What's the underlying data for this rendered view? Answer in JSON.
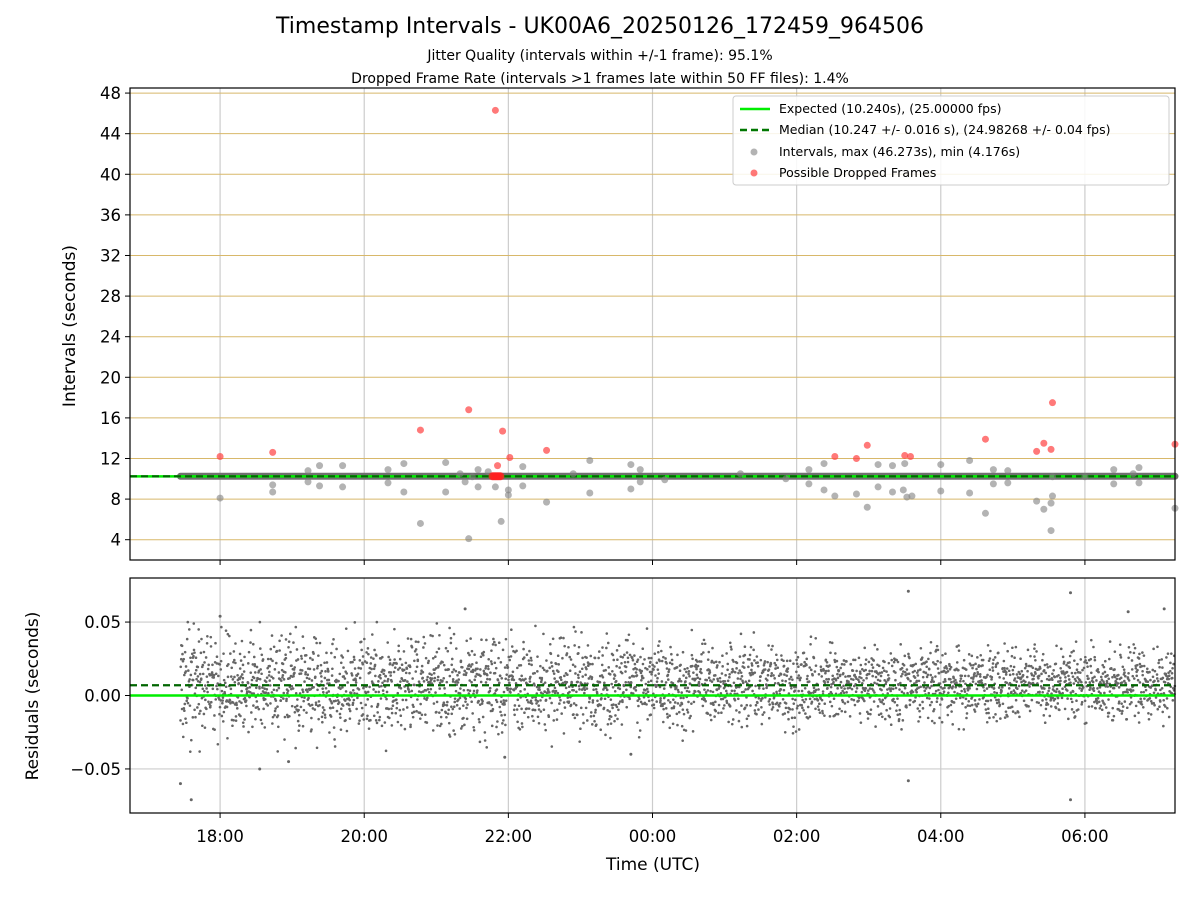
{
  "chart_data": [
    {
      "type": "scatter",
      "title": "Timestamp Intervals - UK00A6_20250126_172459_964506",
      "subtitle_1": "Jitter Quality (intervals within +/-1 frame): 95.1%",
      "subtitle_2": "Dropped Frame Rate (intervals >1 frames late within 50 FF files): 1.4%",
      "ylabel": "Intervals (seconds)",
      "ylim": [
        2,
        48.5
      ],
      "yticks": [
        "4",
        "8",
        "12",
        "16",
        "20",
        "24",
        "28",
        "32",
        "36",
        "40",
        "44",
        "48"
      ],
      "x_range_hours": [
        16.75,
        31.25
      ],
      "grid": true,
      "legend_position": "top-right",
      "legend": [
        "Expected (10.240s), (25.00000 fps)",
        "Median (10.247 +/- 0.016 s), (24.98268 +/- 0.04 fps)",
        "Intervals, max (46.273s), min (4.176s)",
        "Possible Dropped Frames"
      ],
      "expected_interval": 10.24,
      "median_interval": 10.247,
      "series": [
        {
          "kind": "intervals",
          "color": "#808080",
          "points": [
            [
              18.0,
              8.1
            ],
            [
              18.73,
              8.7
            ],
            [
              18.73,
              9.4
            ],
            [
              19.22,
              9.7
            ],
            [
              19.22,
              10.8
            ],
            [
              19.38,
              9.3
            ],
            [
              19.38,
              11.3
            ],
            [
              19.7,
              11.3
            ],
            [
              19.7,
              9.2
            ],
            [
              20.33,
              10.9
            ],
            [
              20.33,
              9.6
            ],
            [
              20.55,
              11.5
            ],
            [
              20.55,
              8.7
            ],
            [
              20.78,
              5.6
            ],
            [
              21.13,
              11.6
            ],
            [
              21.13,
              8.7
            ],
            [
              21.33,
              10.5
            ],
            [
              21.4,
              9.7
            ],
            [
              21.45,
              4.1
            ],
            [
              21.5,
              10.2
            ],
            [
              21.58,
              9.2
            ],
            [
              21.58,
              10.9
            ],
            [
              21.72,
              10.7
            ],
            [
              21.82,
              9.2
            ],
            [
              21.9,
              5.8
            ],
            [
              22.0,
              8.4
            ],
            [
              22.0,
              8.9
            ],
            [
              22.2,
              11.2
            ],
            [
              22.2,
              9.3
            ],
            [
              22.53,
              7.7
            ],
            [
              22.9,
              10.5
            ],
            [
              23.13,
              11.8
            ],
            [
              23.13,
              8.6
            ],
            [
              23.7,
              9.0
            ],
            [
              23.7,
              11.4
            ],
            [
              23.83,
              9.7
            ],
            [
              23.83,
              10.9
            ],
            [
              24.17,
              9.9
            ],
            [
              25.22,
              10.5
            ],
            [
              25.85,
              10.0
            ],
            [
              26.17,
              9.5
            ],
            [
              26.17,
              10.9
            ],
            [
              26.38,
              8.9
            ],
            [
              26.38,
              11.5
            ],
            [
              26.53,
              8.3
            ],
            [
              26.83,
              8.5
            ],
            [
              26.98,
              7.2
            ],
            [
              27.13,
              9.2
            ],
            [
              27.13,
              11.4
            ],
            [
              27.33,
              11.3
            ],
            [
              27.33,
              8.7
            ],
            [
              27.48,
              8.9
            ],
            [
              27.5,
              11.5
            ],
            [
              27.53,
              8.2
            ],
            [
              27.6,
              8.3
            ],
            [
              28.0,
              11.4
            ],
            [
              28.0,
              8.8
            ],
            [
              28.4,
              11.8
            ],
            [
              28.4,
              8.6
            ],
            [
              28.62,
              6.6
            ],
            [
              28.73,
              10.9
            ],
            [
              28.73,
              9.5
            ],
            [
              28.93,
              10.8
            ],
            [
              28.93,
              9.6
            ],
            [
              29.33,
              7.8
            ],
            [
              29.43,
              7.0
            ],
            [
              29.53,
              4.9
            ],
            [
              29.53,
              7.6
            ],
            [
              29.55,
              8.3
            ],
            [
              29.55,
              10.2
            ],
            [
              30.0,
              10.2
            ],
            [
              30.4,
              9.5
            ],
            [
              30.4,
              10.9
            ],
            [
              30.67,
              10.5
            ],
            [
              30.75,
              11.1
            ],
            [
              30.75,
              9.6
            ],
            [
              31.25,
              7.1
            ]
          ]
        },
        {
          "kind": "dropped",
          "color": "#ff4040",
          "points": [
            [
              18.0,
              12.2
            ],
            [
              18.73,
              12.6
            ],
            [
              20.78,
              14.8
            ],
            [
              21.45,
              16.8
            ],
            [
              21.82,
              46.3
            ],
            [
              21.85,
              11.3
            ],
            [
              21.92,
              14.7
            ],
            [
              22.02,
              12.1
            ],
            [
              22.53,
              12.8
            ],
            [
              26.53,
              12.2
            ],
            [
              26.83,
              12.0
            ],
            [
              26.98,
              13.3
            ],
            [
              27.5,
              12.3
            ],
            [
              27.58,
              12.2
            ],
            [
              28.62,
              13.9
            ],
            [
              29.33,
              12.7
            ],
            [
              29.43,
              13.5
            ],
            [
              29.53,
              12.9
            ],
            [
              29.55,
              17.5
            ],
            [
              31.25,
              13.4
            ]
          ]
        }
      ]
    },
    {
      "type": "scatter",
      "xlabel": "Time (UTC)",
      "ylabel": "Residuals (seconds)",
      "ylim": [
        -0.08,
        0.08
      ],
      "yticks": [
        "−0.05",
        "0.00",
        "0.05"
      ],
      "ytick_values": [
        -0.05,
        0.0,
        0.05
      ],
      "x_range_hours": [
        16.75,
        31.25
      ],
      "xticks": [
        "18:00",
        "20:00",
        "22:00",
        "00:00",
        "02:00",
        "04:00",
        "06:00"
      ],
      "expected_residual": 0.0,
      "median_residual": 0.007,
      "residual_start_hour": 17.45,
      "residual_end_hour": 31.25,
      "residual_sd_early": 0.018,
      "residual_sd_late": 0.012,
      "residual_mean_late": 0.008,
      "grid": true,
      "color": "#666666",
      "outliers": [
        [
          17.45,
          -0.06
        ],
        [
          17.6,
          -0.071
        ],
        [
          18.0,
          0.054
        ],
        [
          18.55,
          -0.05
        ],
        [
          18.95,
          -0.045
        ],
        [
          21.4,
          0.059
        ],
        [
          21.95,
          -0.042
        ],
        [
          23.7,
          -0.04
        ],
        [
          27.55,
          0.071
        ],
        [
          27.55,
          -0.058
        ],
        [
          29.8,
          0.07
        ],
        [
          29.8,
          -0.071
        ],
        [
          30.6,
          0.057
        ],
        [
          31.1,
          0.059
        ]
      ]
    }
  ]
}
